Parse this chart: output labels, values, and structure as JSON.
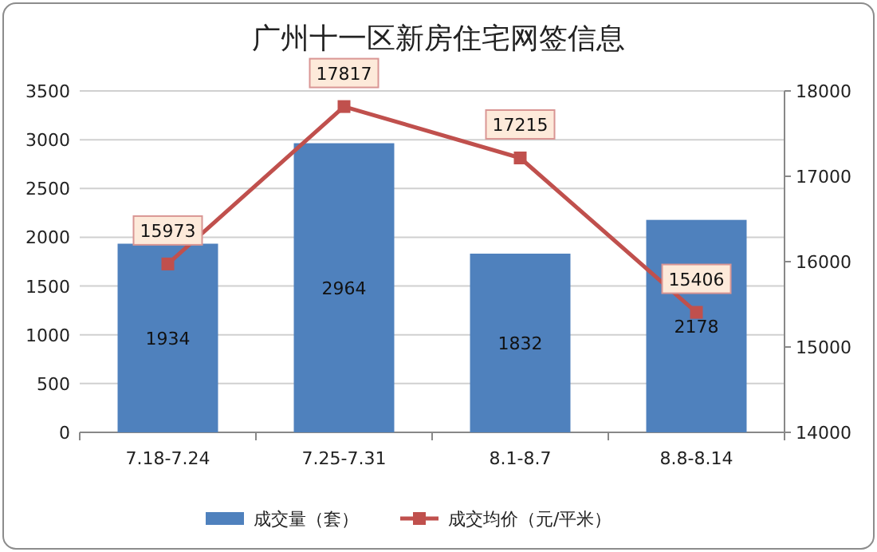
{
  "chart_data": {
    "type": "bar",
    "title": "广州十一区新房住宅网签信息",
    "categories": [
      "7.18-7.24",
      "7.25-7.31",
      "8.1-8.7",
      "8.8-8.14"
    ],
    "series": [
      {
        "name": "成交量（套）",
        "color": "#4f81bd",
        "values": [
          1934,
          2964,
          1832,
          2178
        ]
      },
      {
        "name": "成交均价（元/平米）",
        "type": "line",
        "axis": "y2",
        "color": "#c0504d",
        "marker": "square",
        "line_style": "solid",
        "values": [
          15973,
          17817,
          17215,
          15406
        ]
      }
    ],
    "ylim": [
      0,
      3500
    ],
    "yticks": [
      0,
      500,
      1000,
      1500,
      2000,
      2500,
      3000,
      3500
    ],
    "y2lim": [
      14000,
      18000
    ],
    "y2ticks": [
      14000,
      15000,
      16000,
      17000,
      18000
    ],
    "grid": "y",
    "legend": "bottom",
    "data_labels": true
  }
}
